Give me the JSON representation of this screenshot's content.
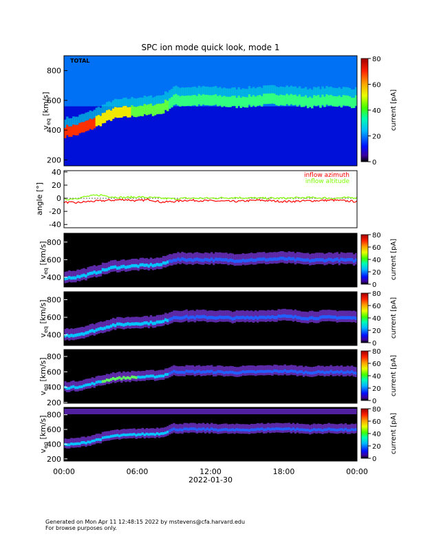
{
  "title": "SPC ion mode quick look, mode 1",
  "chart_data": [
    {
      "type": "heatmap",
      "panel_label": "TOTAL",
      "ylabel": "v_eq [km/s]",
      "ylabel_main": "v",
      "ylabel_sub": "eq",
      "ylabel_unit": " [km/s]",
      "ylim": [
        160,
        900
      ],
      "yticks": [
        200,
        400,
        600,
        800
      ],
      "colorbar_label": "current [pA]",
      "colorbar_range": [
        0,
        80
      ],
      "colorbar_ticks": [
        0,
        20,
        40,
        60,
        80
      ],
      "background": "blue",
      "time_hours": [
        0,
        1,
        2,
        3,
        4,
        5,
        6,
        7,
        8,
        9,
        10,
        12,
        14,
        16,
        18,
        20,
        22,
        24
      ],
      "core_speed_kms": [
        390,
        400,
        430,
        470,
        510,
        520,
        530,
        535,
        545,
        600,
        600,
        600,
        590,
        600,
        610,
        590,
        600,
        590
      ]
    },
    {
      "type": "line",
      "ylabel": "angle [°]",
      "ylim": [
        -45,
        42
      ],
      "yticks": [
        -40,
        -20,
        0,
        20,
        40
      ],
      "series": [
        {
          "name": "inflow azimuth",
          "color": "#ff0000",
          "x": [
            0,
            1,
            2,
            3,
            4,
            5,
            6,
            7,
            8,
            9,
            10,
            12,
            14,
            16,
            18,
            20,
            22,
            24
          ],
          "values": [
            -6,
            -7,
            -5,
            -4,
            -3,
            -2,
            -4,
            -2,
            -6,
            -5,
            -3,
            -4,
            -5,
            -3,
            -5,
            -4,
            -3,
            -5
          ]
        },
        {
          "name": "inflow altitude",
          "color": "#7fff00",
          "x": [
            0,
            1,
            2,
            3,
            4,
            5,
            6,
            7,
            8,
            9,
            10,
            12,
            14,
            16,
            18,
            20,
            22,
            24
          ],
          "values": [
            -2,
            0,
            3,
            5,
            2,
            1,
            2,
            1,
            0,
            -1,
            0,
            0,
            1,
            0,
            0,
            1,
            0,
            1
          ]
        }
      ]
    },
    {
      "type": "heatmap",
      "ylabel": "v_eq [km/s]",
      "ylabel_main": "v",
      "ylabel_sub": "eq",
      "ylabel_unit": " [km/s]",
      "ylim": [
        290,
        900
      ],
      "yticks": [
        400,
        600,
        800
      ],
      "colorbar_label": "current [pA]",
      "colorbar_range": [
        0,
        80
      ],
      "colorbar_ticks": [
        0,
        20,
        40,
        60,
        80
      ],
      "background": "black"
    },
    {
      "type": "heatmap",
      "ylabel": "v_eq [km/s]",
      "ylabel_main": "v",
      "ylabel_sub": "eq",
      "ylabel_unit": " [km/s]",
      "ylim": [
        280,
        890
      ],
      "yticks": [
        400,
        600,
        800
      ],
      "colorbar_label": "current [pA]",
      "colorbar_range": [
        0,
        80
      ],
      "colorbar_ticks": [
        0,
        20,
        40,
        60,
        80
      ],
      "background": "black"
    },
    {
      "type": "heatmap",
      "ylabel": "v_eq [km/s]",
      "ylabel_main": "v",
      "ylabel_sub": "eq",
      "ylabel_unit": " [km/s]",
      "ylim": [
        190,
        890
      ],
      "yticks": [
        200,
        400,
        600,
        800
      ],
      "colorbar_label": "current [pA]",
      "colorbar_range": [
        0,
        80
      ],
      "colorbar_ticks": [
        0,
        20,
        40,
        60,
        80
      ],
      "background": "black"
    },
    {
      "type": "heatmap",
      "ylabel": "v_eq [km/s]",
      "ylabel_main": "v",
      "ylabel_sub": "eq",
      "ylabel_unit": " [km/s]",
      "ylim": [
        170,
        900
      ],
      "yticks": [
        200,
        400,
        600,
        800
      ],
      "colorbar_label": "current [pA]",
      "colorbar_range": [
        0,
        80
      ],
      "colorbar_ticks": [
        0,
        20,
        40,
        60,
        80
      ],
      "background": "black"
    }
  ],
  "xaxis": {
    "tick_labels": [
      "00:00",
      "06:00",
      "12:00",
      "18:00",
      "00:00"
    ],
    "date_label": "2022-01-30"
  },
  "footer": {
    "line1": "Generated on Mon Apr 11 12:48:15 2022 by mstevens@cfa.harvard.edu",
    "line2": "For browse purposes only."
  }
}
